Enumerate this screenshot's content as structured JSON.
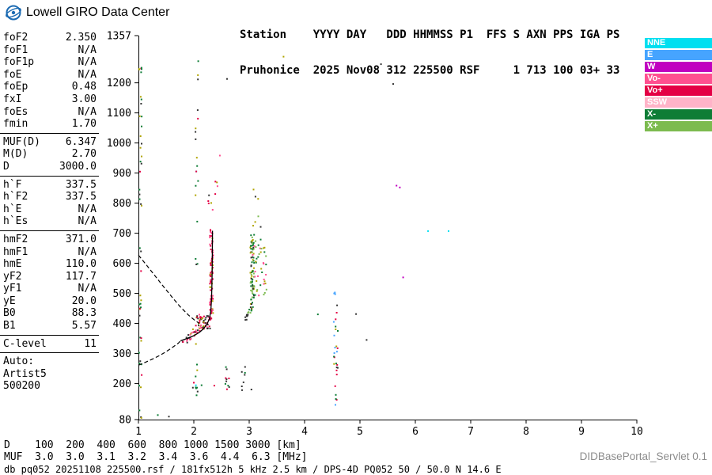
{
  "header": {
    "logo_text": "Lowell GIRO Data Center",
    "line1": "Station    YYYY DAY   DDD HHMMSS P1  FFS S AXN PPS IGA PS",
    "line2": "Pruhonice  2025 Nov08 312 225500 RSF     1 713 100 03+ 33"
  },
  "params": {
    "groups": [
      [
        {
          "label": "foF2",
          "value": "2.350"
        },
        {
          "label": "foF1",
          "value": "N/A"
        },
        {
          "label": "foF1p",
          "value": "N/A"
        },
        {
          "label": "foE",
          "value": "N/A"
        },
        {
          "label": "foEp",
          "value": "0.48"
        },
        {
          "label": "fxI",
          "value": "3.00"
        },
        {
          "label": "foEs",
          "value": "N/A"
        },
        {
          "label": "fmin",
          "value": "1.70"
        }
      ],
      [
        {
          "label": "MUF(D)",
          "value": "6.347"
        },
        {
          "label": "M(D)",
          "value": "2.70"
        },
        {
          "label": "D",
          "value": "3000.0"
        }
      ],
      [
        {
          "label": "h`F",
          "value": "337.5"
        },
        {
          "label": "h`F2",
          "value": "337.5"
        },
        {
          "label": "h`E",
          "value": "N/A"
        },
        {
          "label": "h`Es",
          "value": "N/A"
        }
      ],
      [
        {
          "label": "hmF2",
          "value": "371.0"
        },
        {
          "label": "hmF1",
          "value": "N/A"
        },
        {
          "label": "hmE",
          "value": "110.0"
        },
        {
          "label": "yF2",
          "value": "117.7"
        },
        {
          "label": "yF1",
          "value": "N/A"
        },
        {
          "label": "yE",
          "value": "20.0"
        },
        {
          "label": "B0",
          "value": "88.3"
        },
        {
          "label": "B1",
          "value": "5.57"
        }
      ],
      [
        {
          "label": "C-level",
          "value": "11"
        }
      ]
    ],
    "auto": [
      "Auto:",
      "Artist5",
      "500200"
    ]
  },
  "legend": {
    "items": [
      {
        "label": "NNE",
        "color": "#00dff0"
      },
      {
        "label": "E",
        "color": "#46a4ff"
      },
      {
        "label": "W",
        "color": "#c000c0"
      },
      {
        "label": "Vo-",
        "color": "#ff5090"
      },
      {
        "label": "Vo+",
        "color": "#e40045"
      },
      {
        "label": "SSW",
        "color": "#ffb3c8"
      },
      {
        "label": "X-",
        "color": "#0e7d36"
      },
      {
        "label": "X+",
        "color": "#7cbb4f"
      }
    ]
  },
  "chart_data": {
    "type": "scatter",
    "title": "Pruhonice ionogram 2025 Nov08 312 225500",
    "x_axis": {
      "label": "[MHz]",
      "min": 1,
      "max": 10,
      "ticks": [
        1,
        2,
        3,
        4,
        5,
        6,
        7,
        8,
        9,
        10
      ]
    },
    "y_axis": {
      "label": "[km]",
      "min": 80,
      "max": 1357,
      "ticks": [
        80,
        200,
        300,
        400,
        500,
        600,
        700,
        800,
        900,
        1000,
        1100,
        1200,
        1357
      ]
    },
    "colors": {
      "red": "#e40045",
      "pink": "#ff5090",
      "lightpink": "#ffb3c8",
      "cyan": "#00dff0",
      "blue": "#46a4ff",
      "magenta": "#c000c0",
      "dgreen": "#0e7d36",
      "lgreen": "#7cbb4f",
      "olive": "#b0a400",
      "dark": "#333333"
    },
    "echo_traces": [
      {
        "name": "F topside O-mode",
        "mode": "rect",
        "f0": 2.29,
        "f1": 2.35,
        "h0": 415,
        "h1": 712,
        "n": 85,
        "colors": [
          "red",
          "red",
          "red",
          "pink",
          "olive"
        ],
        "seed": 11
      },
      {
        "name": "F cusp cluster",
        "mode": "rect",
        "f0": 2.05,
        "f1": 2.3,
        "h0": 380,
        "h1": 430,
        "n": 55,
        "colors": [
          "red",
          "dark",
          "dark",
          "pink",
          "red",
          "olive"
        ],
        "seed": 12
      },
      {
        "name": "F bottomside",
        "mode": "band",
        "f0": 1.84,
        "h0": 336,
        "f1": 2.1,
        "h1": 385,
        "fj": 0.05,
        "hj": 9,
        "n": 32,
        "colors": [
          "pink",
          "red",
          "olive",
          "dark",
          "lightpink"
        ],
        "seed": 13
      },
      {
        "name": "F above peak scatter",
        "mode": "rect",
        "f0": 2.26,
        "f1": 2.44,
        "h0": 740,
        "h1": 875,
        "n": 9,
        "colors": [
          "red",
          "olive",
          "dark",
          "pink"
        ],
        "seed": 14
      },
      {
        "name": "X column",
        "mode": "rect",
        "f0": 3.02,
        "f1": 3.09,
        "h0": 440,
        "h1": 695,
        "n": 75,
        "colors": [
          "dgreen",
          "dgreen",
          "lgreen",
          "olive",
          "dark"
        ],
        "seed": 15
      },
      {
        "name": "X spread",
        "mode": "rect",
        "f0": 3.06,
        "f1": 3.32,
        "h0": 480,
        "h1": 680,
        "n": 45,
        "colors": [
          "olive",
          "lgreen",
          "dgreen",
          "pink"
        ],
        "seed": 16
      },
      {
        "name": "X bottom bend",
        "mode": "band",
        "f0": 2.9,
        "h0": 405,
        "f1": 3.03,
        "h1": 445,
        "fj": 0.04,
        "hj": 8,
        "n": 14,
        "colors": [
          "dgreen",
          "dark",
          "lgreen"
        ],
        "seed": 17
      },
      {
        "name": "X top scatter",
        "mode": "rect",
        "f0": 3.02,
        "f1": 3.22,
        "h0": 700,
        "h1": 875,
        "n": 7,
        "colors": [
          "olive",
          "lgreen",
          "dark"
        ],
        "seed": 18
      }
    ],
    "noise_columns": [
      {
        "name": "band edge 1MHz",
        "mode": "rect",
        "f0": 1.01,
        "f1": 1.06,
        "h0": 85,
        "h1": 1260,
        "n": 48,
        "colors": [
          "dgreen",
          "dark",
          "olive",
          "dgreen",
          "red"
        ],
        "seed": 21
      },
      {
        "name": "rfi 2.05MHz",
        "mode": "rect",
        "f0": 2.03,
        "f1": 2.08,
        "h0": 140,
        "h1": 1280,
        "n": 26,
        "colors": [
          "dark",
          "dgreen",
          "red",
          "olive",
          "cyan"
        ],
        "seed": 22
      },
      {
        "name": "rfi 2.6MHz",
        "mode": "rect",
        "f0": 2.57,
        "f1": 2.64,
        "h0": 168,
        "h1": 268,
        "n": 9,
        "colors": [
          "dark",
          "dgreen",
          "red"
        ],
        "seed": 23
      },
      {
        "name": "rfi 2.9MHz",
        "mode": "rect",
        "f0": 2.86,
        "f1": 2.93,
        "h0": 178,
        "h1": 262,
        "n": 7,
        "colors": [
          "dark",
          "dgreen"
        ],
        "seed": 24
      },
      {
        "name": "rfi 4.55MHz",
        "mode": "rect",
        "f0": 4.52,
        "f1": 4.6,
        "h0": 95,
        "h1": 535,
        "n": 30,
        "colors": [
          "dark",
          "dgreen",
          "olive",
          "blue",
          "red"
        ],
        "seed": 25
      },
      {
        "name": "E region echoes",
        "mode": "rect",
        "f0": 1.98,
        "f1": 2.22,
        "h0": 182,
        "h1": 215,
        "n": 6,
        "colors": [
          "dark",
          "red",
          "dgreen"
        ],
        "seed": 26
      }
    ],
    "isolated_points": [
      [
        5.38,
        1262,
        "dark"
      ],
      [
        5.6,
        1196,
        "dark"
      ],
      [
        2.08,
        1272,
        "dgreen"
      ],
      [
        2.6,
        1213,
        "dark"
      ],
      [
        3.62,
        1287,
        "olive"
      ],
      [
        6.23,
        707,
        "cyan"
      ],
      [
        6.6,
        707,
        "cyan"
      ],
      [
        5.78,
        553,
        "magenta"
      ],
      [
        5.72,
        852,
        "magenta"
      ],
      [
        5.66,
        858,
        "magenta"
      ],
      [
        5.12,
        345,
        "dark"
      ],
      [
        4.93,
        431,
        "dark"
      ],
      [
        4.24,
        430,
        "dgreen"
      ],
      [
        2.37,
        193,
        "red"
      ],
      [
        2.62,
        193,
        "dgreen"
      ],
      [
        3.04,
        180,
        "dark"
      ],
      [
        1.35,
        95,
        "dgreen"
      ],
      [
        1.55,
        90,
        "dark"
      ],
      [
        2.47,
        958,
        "pink"
      ]
    ],
    "profile_curves": {
      "solid": [
        [
          1.76,
          342
        ],
        [
          1.88,
          350
        ],
        [
          2.0,
          359
        ],
        [
          2.1,
          370
        ],
        [
          2.18,
          383
        ],
        [
          2.24,
          398
        ],
        [
          2.28,
          415
        ],
        [
          2.305,
          440
        ],
        [
          2.318,
          475
        ],
        [
          2.326,
          520
        ],
        [
          2.331,
          575
        ],
        [
          2.334,
          635
        ],
        [
          2.337,
          708
        ]
      ],
      "dashed_upper": [
        [
          1.0,
          627
        ],
        [
          1.15,
          593
        ],
        [
          1.3,
          558
        ],
        [
          1.45,
          523
        ],
        [
          1.6,
          489
        ],
        [
          1.75,
          456
        ],
        [
          1.9,
          428
        ],
        [
          2.02,
          410
        ],
        [
          2.1,
          400
        ]
      ],
      "dashed_lower": [
        [
          1.0,
          261
        ],
        [
          1.12,
          270
        ],
        [
          1.25,
          281
        ],
        [
          1.38,
          293
        ],
        [
          1.5,
          306
        ],
        [
          1.62,
          321
        ],
        [
          1.72,
          334
        ],
        [
          1.76,
          342
        ]
      ]
    }
  },
  "d_muf_table": {
    "rows": [
      {
        "label": "D",
        "values": [
          "100",
          "200",
          "400",
          "600",
          "800",
          "1000",
          "1500",
          "3000"
        ],
        "unit": "[km]"
      },
      {
        "label": "MUF",
        "values": [
          "3.0",
          "3.0",
          "3.1",
          "3.2",
          "3.4",
          "3.6",
          "4.4",
          "6.3"
        ],
        "unit": "[MHz]"
      }
    ]
  },
  "footer": {
    "file_info": "db pq052 20251108 225500.rsf / 181fx512h 5 kHz 2.5 km / DPS-4D PQ052 50 / 50.0 N 14.6 E",
    "servlet": "DIDBasePortal_Servlet 0.1"
  }
}
